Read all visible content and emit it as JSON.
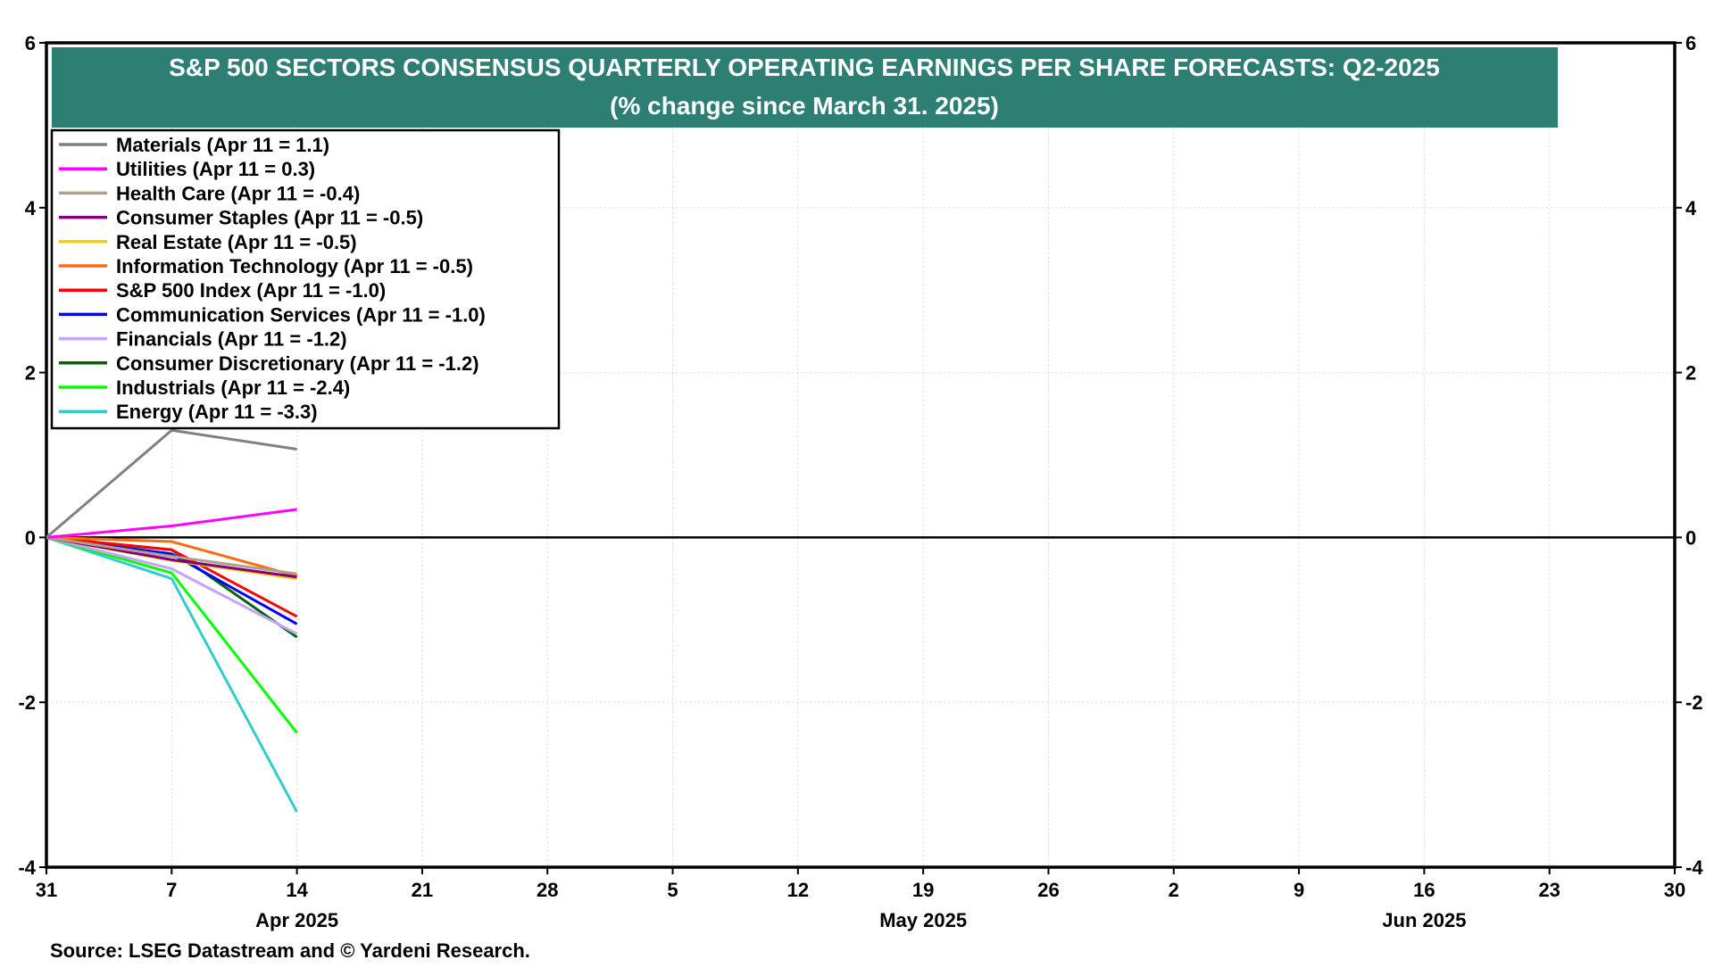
{
  "chart_data": {
    "type": "line",
    "title": "S&P 500 SECTORS CONSENSUS QUARTERLY OPERATING EARNINGS PER SHARE FORECASTS: Q2-2025",
    "subtitle": "(% change since March 31. 2025)",
    "source": "Source: LSEG Datastream and © Yardeni Research.",
    "xlim": [
      "2025-03-31",
      "2025-06-30"
    ],
    "ylim": [
      -4,
      6
    ],
    "y_ticks": [
      -4,
      -2,
      0,
      2,
      4,
      6
    ],
    "y_tick_labels": [
      "-4",
      "-2",
      "0",
      "2",
      "4",
      "6"
    ],
    "x_ticks": [
      "2025-03-31",
      "2025-04-07",
      "2025-04-14",
      "2025-04-21",
      "2025-04-28",
      "2025-05-05",
      "2025-05-12",
      "2025-05-19",
      "2025-05-26",
      "2025-06-02",
      "2025-06-09",
      "2025-06-16",
      "2025-06-23",
      "2025-06-30"
    ],
    "x_tick_labels": [
      "31",
      "7",
      "14",
      "21",
      "28",
      "5",
      "12",
      "19",
      "26",
      "2",
      "9",
      "16",
      "23",
      "30"
    ],
    "month_labels": [
      {
        "text": "Apr 2025",
        "date": "2025-04-14"
      },
      {
        "text": "May 2025",
        "date": "2025-05-19"
      },
      {
        "text": "Jun 2025",
        "date": "2025-06-16"
      }
    ],
    "grid": true,
    "legend_position": "top-left",
    "x": [
      "2025-03-31",
      "2025-04-07",
      "2025-04-14"
    ],
    "series": [
      {
        "name": "Materials (Apr 11 = 1.1)",
        "color": "#808080",
        "values": [
          0,
          1.3,
          1.07
        ]
      },
      {
        "name": "Utilities (Apr 11 = 0.3)",
        "color": "#ff00ff",
        "values": [
          0,
          0.14,
          0.34
        ]
      },
      {
        "name": "Health Care (Apr 11 = -0.4)",
        "color": "#b0a08a",
        "values": [
          0,
          -0.23,
          -0.44
        ]
      },
      {
        "name": "Consumer Staples (Apr 11 = -0.5)",
        "color": "#800080",
        "values": [
          0,
          -0.27,
          -0.48
        ]
      },
      {
        "name": "Real Estate (Apr 11 = -0.5)",
        "color": "#ffcc00",
        "values": [
          0,
          -0.28,
          -0.5
        ]
      },
      {
        "name": "Information Technology (Apr 11 = -0.5)",
        "color": "#ff6a13",
        "values": [
          0,
          -0.05,
          -0.47
        ]
      },
      {
        "name": "S&P 500 Index (Apr 11 = -1.0)",
        "color": "#ff0000",
        "values": [
          0,
          -0.15,
          -0.96
        ]
      },
      {
        "name": "Communication Services (Apr 11 = -1.0)",
        "color": "#0000ff",
        "values": [
          0,
          -0.2,
          -1.05
        ]
      },
      {
        "name": "Financials (Apr 11 = -1.2)",
        "color": "#c7a3ff",
        "values": [
          0,
          -0.38,
          -1.17
        ]
      },
      {
        "name": "Consumer Discretionary (Apr 11 = -1.2)",
        "color": "#006400",
        "values": [
          0,
          -0.15,
          -1.21
        ]
      },
      {
        "name": "Industrials (Apr 11 = -2.4)",
        "color": "#00ff00",
        "values": [
          0,
          -0.43,
          -2.37
        ]
      },
      {
        "name": "Energy (Apr 11 = -3.3)",
        "color": "#33cccc",
        "values": [
          0,
          -0.5,
          -3.33
        ]
      }
    ],
    "colors": {
      "title_bg": "#2e7f73",
      "title_text": "#ffffff",
      "zero_line": "#000000",
      "grid": "#d9d9d9",
      "frame": "#000000"
    }
  }
}
